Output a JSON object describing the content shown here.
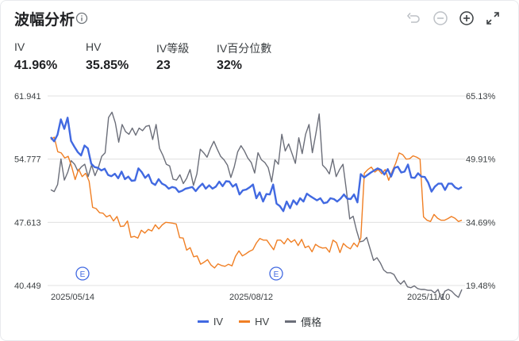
{
  "header": {
    "title": "波幅分析"
  },
  "stats": [
    {
      "label": "IV",
      "value": "41.96%"
    },
    {
      "label": "HV",
      "value": "35.85%"
    },
    {
      "label": "IV等級",
      "value": "23"
    },
    {
      "label": "IV百分位數",
      "value": "32%"
    }
  ],
  "colors": {
    "iv": "#4169e1",
    "hv": "#f07f24",
    "price": "#6b6e79",
    "grid": "#e0e0e0"
  },
  "chart_data": {
    "type": "line",
    "left_axis": {
      "ticks": [
        "61.941",
        "54.777",
        "47.613",
        "40.449"
      ],
      "ylim": [
        40.449,
        61.941
      ]
    },
    "right_axis": {
      "ticks": [
        "65.13%",
        "49.91%",
        "34.69%",
        "19.48%"
      ],
      "ylim": [
        19.48,
        65.13
      ]
    },
    "x_ticks": [
      "2025/05/14",
      "2025/08/12",
      "2025/11/10"
    ],
    "event_markers": [
      {
        "label": "E",
        "date": "2025/05/29"
      },
      {
        "label": "E",
        "date": "2025/08/26"
      }
    ],
    "series": [
      {
        "name": "IV",
        "axis": "right",
        "values": [
          55.2,
          54.2,
          55.8,
          59.5,
          57.2,
          59.9,
          54.3,
          52.9,
          51.6,
          50.8,
          53.2,
          52.5,
          48.8,
          48.0,
          47.8,
          47.2,
          47.6,
          46.1,
          45.8,
          46.4,
          45.3,
          46.9,
          45.1,
          45.7,
          44.7,
          44.8,
          47.7,
          46.8,
          45.4,
          46.2,
          44.2,
          43.7,
          45.1,
          44.0,
          43.6,
          42.8,
          43.2,
          43.0,
          42.0,
          42.3,
          42.8,
          43.0,
          43.2,
          42.2,
          43.2,
          44.0,
          42.8,
          43.6,
          42.8,
          43.3,
          44.5,
          43.4,
          44.6,
          44.5,
          43.3,
          43.9,
          41.4,
          42.4,
          42.6,
          43.1,
          43.8,
          40.5,
          41.9,
          39.7,
          41.5,
          41.4,
          43.8,
          39.2,
          38.6,
          37.4,
          39.7,
          38.1,
          40.0,
          39.0,
          40.5,
          39.7,
          41.6,
          41.0,
          40.5,
          40.0,
          40.5,
          39.3,
          39.5,
          40.5,
          40.3,
          39.7,
          40.4,
          41.4,
          40.4,
          40.3,
          41.4,
          39.5,
          46.3,
          45.5,
          46.1,
          46.7,
          47.2,
          47.7,
          47.3,
          46.2,
          47.5,
          45.7,
          47.8,
          48.1,
          46.7,
          46.9,
          48.6,
          45.5,
          45.4,
          46.5,
          45.7,
          45.6,
          44.3,
          42.1,
          43.3,
          44.0,
          44.0,
          42.5,
          44.0,
          44.0,
          43.1,
          42.7,
          43.2
        ]
      },
      {
        "name": "HV",
        "axis": "right",
        "values": [
          54.6,
          55.2,
          51.7,
          51.4,
          50.2,
          50.6,
          48.1,
          45.0,
          47.5,
          45.7,
          46.5,
          44.6,
          38.3,
          38.0,
          37.0,
          36.9,
          36.0,
          36.4,
          35.0,
          36.1,
          33.7,
          33.8,
          35.0,
          31.1,
          31.3,
          30.9,
          32.8,
          32.1,
          33.0,
          32.6,
          34.1,
          33.1,
          34.1,
          34.7,
          34.6,
          34.5,
          34.3,
          31.0,
          30.9,
          28.0,
          28.6,
          26.4,
          26.6,
          24.6,
          25.1,
          25.7,
          24.4,
          23.7,
          24.7,
          24.3,
          24.1,
          24.6,
          24.2,
          26.5,
          27.8,
          26.6,
          27.1,
          27.7,
          28.1,
          29.7,
          30.8,
          30.4,
          30.4,
          29.2,
          28.1,
          30.4,
          30.4,
          29.5,
          30.8,
          29.9,
          30.5,
          29.1,
          30.6,
          28.6,
          29.0,
          27.6,
          29.4,
          28.8,
          28.5,
          28.6,
          27.5,
          30.4,
          29.8,
          27.4,
          29.6,
          28.8,
          28.3,
          29.7,
          28.8,
          31.0,
          46.5,
          47.4,
          48.0,
          46.8,
          47.4,
          46.4,
          47.4,
          44.8,
          47.0,
          48.9,
          51.4,
          51.0,
          49.9,
          50.0,
          50.7,
          50.4,
          49.9,
          36.0,
          35.2,
          34.9,
          36.6,
          35.7,
          35.2,
          35.2,
          35.6,
          36.1,
          35.7,
          34.9,
          35.2
        ]
      },
      {
        "name": "價格",
        "axis": "left",
        "values": [
          51.3,
          51.1,
          51.9,
          54.8,
          52.4,
          53.3,
          54.6,
          54.2,
          53.4,
          53.9,
          54.2,
          52.8,
          54.1,
          52.9,
          53.8,
          55.1,
          55.5,
          59.5,
          60.1,
          58.9,
          56.7,
          58.7,
          57.9,
          57.6,
          58.3,
          57.5,
          58.3,
          58.0,
          58.5,
          58.6,
          57.0,
          58.7,
          56.0,
          55.2,
          54.2,
          54.0,
          52.5,
          52.4,
          53.0,
          52.0,
          52.6,
          53.6,
          51.8,
          53.1,
          55.9,
          55.5,
          55.0,
          56.0,
          56.8,
          55.9,
          55.1,
          54.7,
          54.1,
          52.7,
          53.9,
          55.6,
          56.3,
          55.7,
          54.9,
          54.4,
          53.2,
          55.5,
          54.7,
          54.4,
          53.8,
          52.2,
          54.7,
          54.2,
          57.6,
          55.7,
          56.5,
          55.4,
          54.3,
          57.2,
          55.4,
          57.6,
          58.7,
          55.5,
          57.6,
          59.9,
          54.1,
          53.7,
          53.1,
          54.8,
          52.8,
          53.6,
          54.2,
          51.3,
          48.0,
          48.3,
          46.7,
          45.4,
          45.5,
          45.9,
          44.6,
          43.3,
          43.6,
          43.0,
          42.2,
          41.9,
          41.9,
          41.7,
          41.0,
          40.6,
          41.0,
          40.3,
          40.2,
          40.4,
          40.1,
          40.0,
          40.0,
          39.9,
          39.9,
          39.6,
          40.0,
          38.9,
          39.8,
          40.0,
          39.8,
          39.4,
          39.1,
          40.0
        ]
      }
    ]
  },
  "legend": [
    "IV",
    "HV",
    "價格"
  ]
}
